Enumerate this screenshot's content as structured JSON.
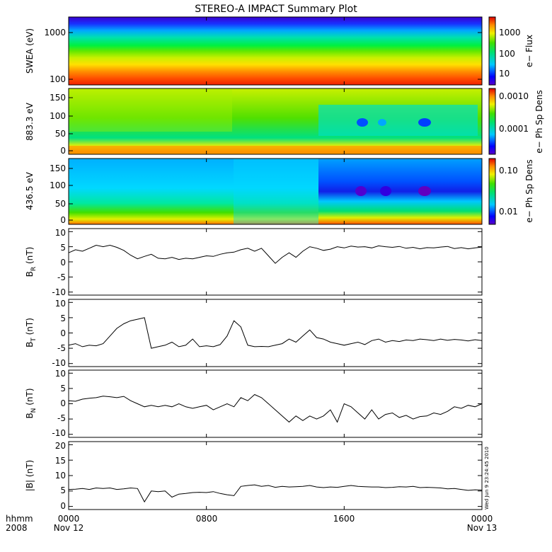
{
  "chart_data": {
    "type": "line",
    "title": "STEREO-A IMPACT Summary Plot",
    "x_axis": {
      "label_left": [
        "hhmm",
        "2008"
      ],
      "ticks": [
        {
          "hhmm": "0000",
          "date": "Nov 12"
        },
        {
          "hhmm": "0800",
          "date": ""
        },
        {
          "hhmm": "1600",
          "date": ""
        },
        {
          "hhmm": "0000",
          "date": "Nov 13"
        }
      ],
      "range_hours": [
        0,
        24
      ]
    },
    "timestamp": "Wed Jun 9 23:24:45 2010",
    "spectrograms": [
      {
        "ylabel": "SWEA (eV)",
        "y_ticks": [
          "1000",
          "100"
        ],
        "ylim": [
          90,
          2000
        ],
        "log_y": true,
        "colorbar_label": "e− Flux",
        "colorbar_ticks": [
          "1000",
          "100",
          "10"
        ],
        "colorscale": "log"
      },
      {
        "ylabel": "883.3 eV",
        "y_ticks": [
          "150",
          "100",
          "50",
          "0"
        ],
        "ylim": [
          -10,
          180
        ],
        "colorbar_label": "e− Ph Sp Dens",
        "colorbar_ticks": [
          "0.0010",
          "0.0001"
        ],
        "colorscale": "log"
      },
      {
        "ylabel": "436.5 eV",
        "y_ticks": [
          "150",
          "100",
          "50",
          "0"
        ],
        "ylim": [
          -10,
          180
        ],
        "colorbar_label": "e− Ph Sp Dens",
        "colorbar_ticks": [
          "0.10",
          "0.01"
        ],
        "colorscale": "log"
      }
    ],
    "series": [
      {
        "ylabel_main": "B",
        "ylabel_sub": "R",
        "ylabel_unit": " (nT)",
        "y_ticks": [
          "10",
          "5",
          "0",
          "-5",
          "-10"
        ],
        "ylim": [
          -11,
          11
        ],
        "x": [
          0,
          0.4,
          0.8,
          1.2,
          1.6,
          2,
          2.4,
          2.8,
          3.2,
          3.6,
          4,
          4.4,
          4.8,
          5.2,
          5.6,
          6,
          6.4,
          6.8,
          7.2,
          7.6,
          8,
          8.4,
          8.8,
          9.2,
          9.6,
          10,
          10.4,
          10.8,
          11.2,
          11.6,
          12,
          12.4,
          12.8,
          13.2,
          13.6,
          14,
          14.4,
          14.8,
          15.2,
          15.6,
          16,
          16.4,
          16.8,
          17.2,
          17.6,
          18,
          18.4,
          18.8,
          19.2,
          19.6,
          20,
          20.4,
          20.8,
          21.2,
          21.6,
          22,
          22.4,
          22.8,
          23.2,
          23.6,
          24
        ],
        "values": [
          3,
          4,
          3.5,
          4.5,
          5.5,
          5,
          5.5,
          4.8,
          3.8,
          2.2,
          1,
          1.8,
          2.5,
          1.2,
          1,
          1.5,
          0.8,
          1.2,
          1,
          1.5,
          2,
          1.8,
          2.5,
          3,
          3.2,
          4,
          4.5,
          3.5,
          4.5,
          2,
          -0.5,
          1.5,
          3,
          1.5,
          3.5,
          5,
          4.5,
          3.8,
          4.2,
          5,
          4.6,
          5.2,
          4.9,
          5,
          4.6,
          5.3,
          5,
          4.8,
          5.1,
          4.5,
          4.8,
          4.3,
          4.7,
          4.6,
          4.9,
          5.1,
          4.4,
          4.7,
          4.3,
          4.6,
          4.9
        ]
      },
      {
        "ylabel_main": "B",
        "ylabel_sub": "T",
        "ylabel_unit": " (nT)",
        "y_ticks": [
          "10",
          "5",
          "0",
          "-5",
          "-10"
        ],
        "ylim": [
          -11,
          11
        ],
        "x": [
          0,
          0.4,
          0.8,
          1.2,
          1.6,
          2,
          2.4,
          2.8,
          3.2,
          3.6,
          4,
          4.4,
          4.8,
          5.2,
          5.6,
          6,
          6.4,
          6.8,
          7.2,
          7.6,
          8,
          8.4,
          8.8,
          9.2,
          9.6,
          10,
          10.4,
          10.8,
          11.2,
          11.6,
          12,
          12.4,
          12.8,
          13.2,
          13.6,
          14,
          14.4,
          14.8,
          15.2,
          15.6,
          16,
          16.4,
          16.8,
          17.2,
          17.6,
          18,
          18.4,
          18.8,
          19.2,
          19.6,
          20,
          20.4,
          20.8,
          21.2,
          21.6,
          22,
          22.4,
          22.8,
          23.2,
          23.6,
          24
        ],
        "values": [
          -4,
          -3.5,
          -4.5,
          -4,
          -4.2,
          -3.5,
          -1,
          1.5,
          3,
          4,
          4.5,
          5,
          -5,
          -4.5,
          -4,
          -3,
          -4.5,
          -4,
          -2,
          -4.5,
          -4.2,
          -4.5,
          -3.8,
          -1,
          4,
          2,
          -4,
          -4.5,
          -4.4,
          -4.5,
          -4,
          -3.5,
          -2,
          -3,
          -1,
          1,
          -1.5,
          -2,
          -3,
          -3.5,
          -4,
          -3.5,
          -3,
          -3.8,
          -2.5,
          -2,
          -3,
          -2.5,
          -2.8,
          -2.3,
          -2.5,
          -2,
          -2.2,
          -2.5,
          -2,
          -2.4,
          -2.1,
          -2.3,
          -2.6,
          -2.2,
          -2.5
        ]
      },
      {
        "ylabel_main": "B",
        "ylabel_sub": "N",
        "ylabel_unit": " (nT)",
        "y_ticks": [
          "10",
          "5",
          "0",
          "-5",
          "-10"
        ],
        "ylim": [
          -11,
          11
        ],
        "x": [
          0,
          0.4,
          0.8,
          1.2,
          1.6,
          2,
          2.4,
          2.8,
          3.2,
          3.6,
          4,
          4.4,
          4.8,
          5.2,
          5.6,
          6,
          6.4,
          6.8,
          7.2,
          7.6,
          8,
          8.4,
          8.8,
          9.2,
          9.6,
          10,
          10.4,
          10.8,
          11.2,
          11.6,
          12,
          12.4,
          12.8,
          13.2,
          13.6,
          14,
          14.4,
          14.8,
          15.2,
          15.6,
          16,
          16.4,
          16.8,
          17.2,
          17.6,
          18,
          18.4,
          18.8,
          19.2,
          19.6,
          20,
          20.4,
          20.8,
          21.2,
          21.6,
          22,
          22.4,
          22.8,
          23.2,
          23.6,
          24
        ],
        "values": [
          1,
          0.8,
          1.5,
          1.8,
          2,
          2.5,
          2.3,
          2,
          2.4,
          1,
          0,
          -1,
          -0.5,
          -1,
          -0.5,
          -1,
          0,
          -1,
          -1.5,
          -1,
          -0.5,
          -2,
          -1,
          0,
          -1,
          2,
          1,
          3,
          2,
          0,
          -2,
          -4,
          -6,
          -4,
          -5.5,
          -4,
          -5,
          -4,
          -2,
          -6,
          0,
          -1,
          -3,
          -5,
          -2,
          -5,
          -3.5,
          -3,
          -4.5,
          -3.8,
          -5,
          -4.2,
          -4,
          -3,
          -3.5,
          -2.5,
          -1,
          -1.5,
          -0.5,
          -1,
          0
        ]
      },
      {
        "ylabel_main": "|B|",
        "ylabel_sub": "",
        "ylabel_unit": " (nT)",
        "y_ticks": [
          "20",
          "15",
          "10",
          "5",
          "0"
        ],
        "ylim": [
          -1,
          21
        ],
        "x": [
          0,
          0.4,
          0.8,
          1.2,
          1.6,
          2,
          2.4,
          2.8,
          3.2,
          3.6,
          4,
          4.4,
          4.8,
          5.2,
          5.6,
          6,
          6.4,
          6.8,
          7.2,
          7.6,
          8,
          8.4,
          8.8,
          9.2,
          9.6,
          10,
          10.4,
          10.8,
          11.2,
          11.6,
          12,
          12.4,
          12.8,
          13.2,
          13.6,
          14,
          14.4,
          14.8,
          15.2,
          15.6,
          16,
          16.4,
          16.8,
          17.2,
          17.6,
          18,
          18.4,
          18.8,
          19.2,
          19.6,
          20,
          20.4,
          20.8,
          21.2,
          21.6,
          22,
          22.4,
          22.8,
          23.2,
          23.6,
          24
        ],
        "values": [
          5.5,
          5.6,
          5.8,
          5.5,
          6,
          5.8,
          6,
          5.5,
          5.7,
          6,
          5.8,
          1.5,
          5,
          4.8,
          5,
          3,
          4,
          4.2,
          4.5,
          4.6,
          4.5,
          4.8,
          4.2,
          3.8,
          3.5,
          6.5,
          6.8,
          7,
          6.5,
          6.8,
          6.2,
          6.5,
          6.3,
          6.4,
          6.5,
          6.8,
          6.3,
          6.1,
          6.3,
          6.2,
          6.5,
          6.8,
          6.5,
          6.4,
          6.3,
          6.3,
          6.1,
          6.2,
          6.4,
          6.3,
          6.5,
          6.1,
          6.2,
          6.1,
          6,
          5.7,
          5.8,
          5.5,
          5.2,
          5.4,
          5.3
        ]
      }
    ]
  }
}
